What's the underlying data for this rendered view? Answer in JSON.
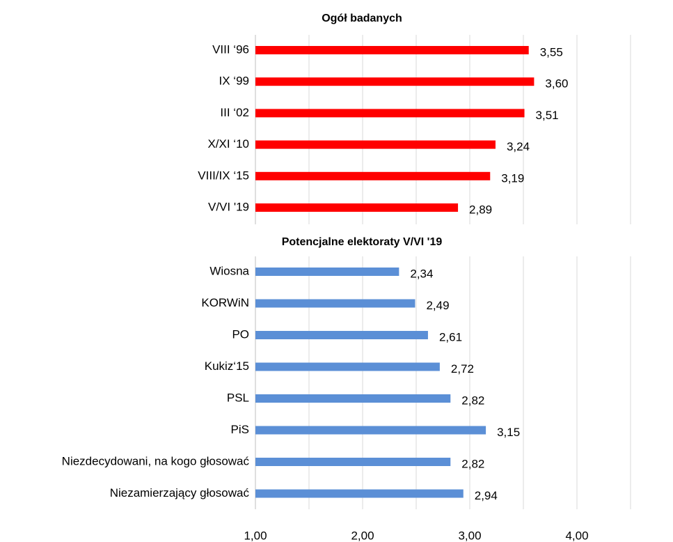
{
  "chart_data": [
    {
      "type": "bar",
      "orientation": "horizontal",
      "title": "Ogół badanych",
      "categories": [
        "VIII ‘96",
        "IX ‘99",
        "III ‘02",
        "X/XI ‘10",
        "VIII/IX ‘15",
        "V/VI '19"
      ],
      "values": [
        3.55,
        3.6,
        3.51,
        3.24,
        3.19,
        2.89
      ],
      "value_labels": [
        "3,55",
        "3,60",
        "3,51",
        "3,24",
        "3,19",
        "2,89"
      ],
      "color": "#ff0000",
      "xlim": [
        1,
        4.5
      ],
      "xgrid": [
        1.5,
        2,
        2.5,
        3,
        3.5,
        4,
        4.5
      ],
      "grid": true
    },
    {
      "type": "bar",
      "orientation": "horizontal",
      "title": "Potencjalne elektoraty V/VI '19",
      "categories": [
        "Wiosna",
        "KORWiN",
        "PO",
        "Kukiz‘15",
        "PSL",
        "PiS",
        "Niezdecydowani, na kogo głosować",
        "Niezamierzający głosować"
      ],
      "values": [
        2.34,
        2.49,
        2.61,
        2.72,
        2.82,
        3.15,
        2.82,
        2.94
      ],
      "value_labels": [
        "2,34",
        "2,49",
        "2,61",
        "2,72",
        "2,82",
        "3,15",
        "2,82",
        "2,94"
      ],
      "color": "#5b8fd6",
      "xlim": [
        1,
        4.5
      ],
      "xgrid": [
        1.5,
        2,
        2.5,
        3,
        3.5,
        4,
        4.5
      ],
      "grid": true,
      "xticks": [
        {
          "value": 1,
          "label": "1,00"
        },
        {
          "value": 2,
          "label": "2,00"
        },
        {
          "value": 3,
          "label": "3,00"
        },
        {
          "value": 4,
          "label": "4,00"
        }
      ]
    }
  ]
}
